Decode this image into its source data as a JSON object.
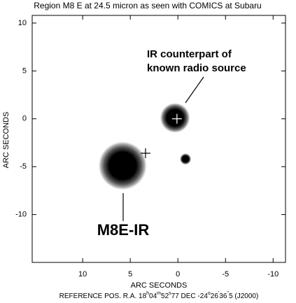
{
  "chart_data": {
    "type": "image",
    "title": "Region M8 E at 24.5 micron as seen with COMICS at Subaru",
    "x_label": "ARC SECONDS",
    "y_label": "ARC SECONDS",
    "xlim": [
      15.3,
      -11.3
    ],
    "ylim": [
      -15,
      10.8
    ],
    "xticks": [
      10,
      5,
      0,
      -5,
      -10
    ],
    "yticks": [
      10,
      5,
      0,
      -5,
      -10
    ],
    "sources": [
      {
        "x": 5.8,
        "y": -4.9,
        "size": 2.6
      },
      {
        "x": 0.3,
        "y": 0.1,
        "size": 1.6
      },
      {
        "x": -0.8,
        "y": -4.2,
        "size": 0.6
      }
    ],
    "markers": [
      {
        "x": 3.4,
        "y": -3.6
      },
      {
        "x": 0.1,
        "y": 0.0
      }
    ],
    "annotations": [
      "IR counterpart of",
      "known radio source",
      "M8E-IR"
    ],
    "footer": [
      {
        "text": "REFERENCE POS.  R.A. 18",
        "sup": false
      },
      {
        "text": "h",
        "sup": true
      },
      {
        "text": "04",
        "sup": false
      },
      {
        "text": "m",
        "sup": true
      },
      {
        "text": "52",
        "sup": false
      },
      {
        "text": "s",
        "sup": true
      },
      {
        "text": "77  DEC  -24",
        "sup": false
      },
      {
        "text": "o",
        "sup": true
      },
      {
        "text": "26",
        "sup": false
      },
      {
        "text": "'",
        "sup": true
      },
      {
        "text": "36",
        "sup": false
      },
      {
        "text": "''",
        "sup": true
      },
      {
        "text": "5  (J2000)",
        "sup": false
      }
    ]
  }
}
